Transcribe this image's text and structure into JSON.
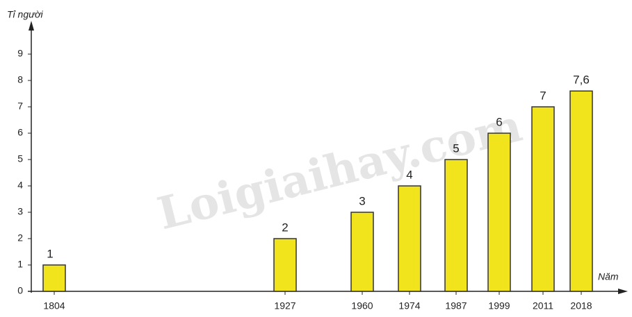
{
  "chart_data": {
    "type": "bar",
    "y_label": "Tỉ người",
    "x_label": "Năm",
    "watermark": "Loigiaihay.com",
    "categories": [
      "1804",
      "1927",
      "1960",
      "1974",
      "1987",
      "1999",
      "2011",
      "2018"
    ],
    "values": [
      1,
      2,
      3,
      4,
      5,
      6,
      7,
      7.6
    ],
    "value_labels": [
      "1",
      "2",
      "3",
      "4",
      "5",
      "6",
      "7",
      "7,6"
    ],
    "color": "#f2e41c",
    "ylim": [
      0,
      9
    ],
    "yticks": [
      0,
      1,
      2,
      3,
      4,
      5,
      6,
      7,
      8,
      9
    ]
  }
}
